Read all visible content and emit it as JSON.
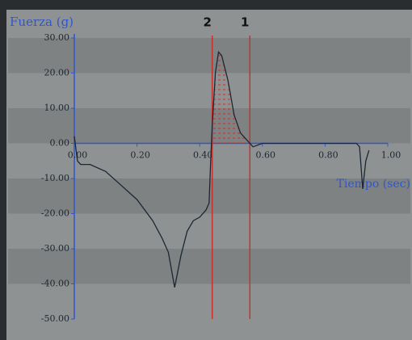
{
  "chart_data": {
    "type": "line",
    "y_label": "Fuerza  (g)",
    "x_label": "Tiempo (sec)",
    "x": [
      0.0,
      0.01,
      0.02,
      0.05,
      0.1,
      0.15,
      0.2,
      0.25,
      0.28,
      0.3,
      0.32,
      0.34,
      0.36,
      0.38,
      0.4,
      0.42,
      0.43,
      0.435,
      0.44,
      0.45,
      0.46,
      0.47,
      0.49,
      0.51,
      0.53,
      0.55,
      0.57,
      0.6,
      0.7,
      0.8,
      0.9,
      0.91,
      0.92,
      0.93,
      0.94
    ],
    "series": [
      {
        "color": "#1c2634",
        "values": [
          2,
          -5,
          -6,
          -6,
          -8,
          -12,
          -16,
          -22,
          -27,
          -31,
          -41,
          -32,
          -25,
          -22,
          -21,
          -19,
          -17,
          -5,
          5,
          20,
          26,
          25,
          18,
          8,
          3,
          1,
          -1,
          0,
          0,
          0,
          0,
          -1,
          -13,
          -5,
          -2
        ]
      }
    ],
    "cursors": [
      {
        "label": "2",
        "x": 0.44,
        "color": "#c8322c"
      },
      {
        "label": "1",
        "x": 0.56,
        "color": "#c8322c"
      }
    ],
    "xlim": [
      0,
      1.0
    ],
    "ylim": [
      -50,
      30
    ],
    "xticks": [
      {
        "value": 0,
        "label": "0.00"
      },
      {
        "value": 0.2,
        "label": "0.20"
      },
      {
        "value": 0.4,
        "label": "0.40"
      },
      {
        "value": 0.6,
        "label": "0.60"
      },
      {
        "value": 0.8,
        "label": "0.80"
      },
      {
        "value": 1.0,
        "label": "1.00"
      }
    ],
    "yticks": [
      {
        "value": 30,
        "label": "30.00"
      },
      {
        "value": 20,
        "label": "20.00"
      },
      {
        "value": 10,
        "label": "10.00"
      },
      {
        "value": 0,
        "label": "0.00"
      },
      {
        "value": -10,
        "label": "-10.00"
      },
      {
        "value": -20,
        "label": "-20.00"
      },
      {
        "value": -30,
        "label": "-30.00"
      },
      {
        "value": -40,
        "label": "-40.00"
      },
      {
        "value": -50,
        "label": "-50.00"
      }
    ]
  }
}
